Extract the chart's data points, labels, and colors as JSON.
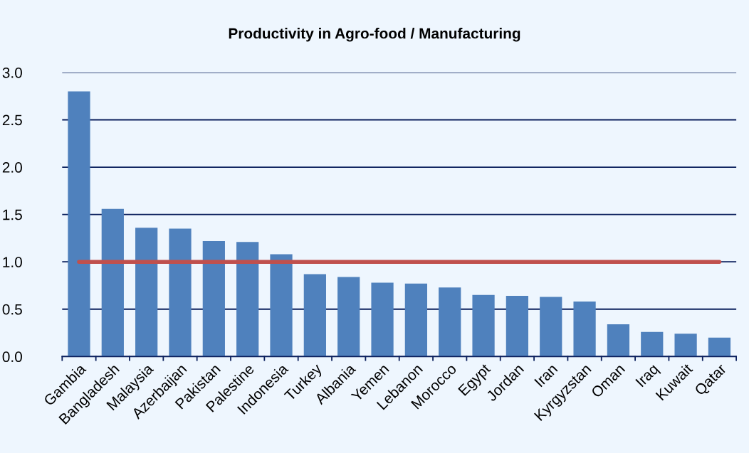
{
  "chart_data": {
    "type": "bar",
    "title": "Productivity in Agro-food / Manufacturing",
    "categories": [
      "Gambia",
      "Bangladesh",
      "Malaysia",
      "Azerbaijan",
      "Pakistan",
      "Palestine",
      "Indonesia",
      "Turkey",
      "Albania",
      "Yemen",
      "Lebanon",
      "Morocco",
      "Egypt",
      "Jordan",
      "Iran",
      "Kyrgyzstan",
      "Oman",
      "Iraq",
      "Kuwait",
      "Qatar"
    ],
    "values": [
      2.8,
      1.56,
      1.36,
      1.35,
      1.22,
      1.21,
      1.08,
      0.87,
      0.84,
      0.78,
      0.77,
      0.73,
      0.65,
      0.64,
      0.63,
      0.58,
      0.34,
      0.26,
      0.24,
      0.2
    ],
    "color": "#4f81bd",
    "ylim": [
      0,
      3.0
    ],
    "yticks": [
      {
        "value": 0,
        "label": "0.0"
      },
      {
        "value": 0.5,
        "label": "0.5"
      },
      {
        "value": 1.0,
        "label": "1.0"
      },
      {
        "value": 1.5,
        "label": "1.5"
      },
      {
        "value": 2.0,
        "label": "2.0"
      },
      {
        "value": 2.5,
        "label": "2.5"
      },
      {
        "value": 3.0,
        "label": "3.0"
      }
    ],
    "grid": "y",
    "ref_lines": [
      {
        "axis": "y",
        "value": 1.0,
        "label": null,
        "color": "#c0504d",
        "line_style": "solid"
      }
    ]
  }
}
